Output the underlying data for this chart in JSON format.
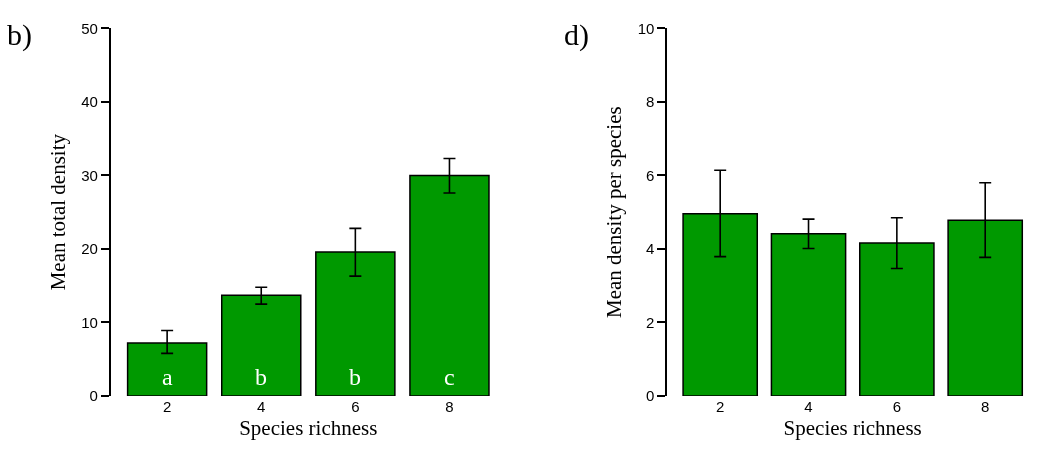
{
  "chart_data": [
    {
      "type": "bar",
      "title": "b)",
      "xlabel": "Species richness",
      "ylabel": "Mean total density",
      "categories": [
        "2",
        "4",
        "6",
        "8"
      ],
      "color": "#009900",
      "values": [
        7.2,
        13.7,
        19.6,
        30.0
      ],
      "errors": [
        [
          5.8,
          8.9
        ],
        [
          12.5,
          14.8
        ],
        [
          16.3,
          22.8
        ],
        [
          27.6,
          32.3
        ]
      ],
      "annotations": [
        "a",
        "b",
        "b",
        "c"
      ],
      "ylim": [
        0,
        50
      ],
      "yticks": [
        0,
        10,
        20,
        30,
        40,
        50
      ]
    },
    {
      "type": "bar",
      "title": "d)",
      "xlabel": "Species richness",
      "ylabel": "Mean density per species",
      "categories": [
        "2",
        "4",
        "6",
        "8"
      ],
      "color": "#009900",
      "values": [
        4.96,
        4.41,
        4.16,
        4.78
      ],
      "errors": [
        [
          3.79,
          6.14
        ],
        [
          4.01,
          4.81
        ],
        [
          3.47,
          4.85
        ],
        [
          3.77,
          5.8
        ]
      ],
      "ylim": [
        0,
        10
      ],
      "yticks": [
        0,
        2,
        4,
        6,
        8,
        10
      ]
    }
  ]
}
